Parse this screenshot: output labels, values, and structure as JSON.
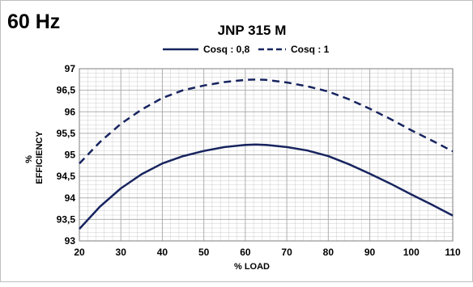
{
  "chart_data": {
    "type": "line",
    "frequency_label": "60 Hz",
    "title": "JNP 315 M",
    "xlabel": "% LOAD",
    "ylabel_top": "%",
    "ylabel": "EFFICIENCY",
    "xlim": [
      20,
      110
    ],
    "ylim": [
      93,
      97
    ],
    "x_ticks": [
      "20",
      "30",
      "40",
      "50",
      "60",
      "70",
      "80",
      "90",
      "100",
      "110"
    ],
    "y_ticks": [
      "93",
      "93,5",
      "94",
      "94,5",
      "95",
      "95,5",
      "96",
      "96,5",
      "97"
    ],
    "grid": true,
    "legend_position": "top",
    "colors": {
      "series": "#17245f",
      "grid": "#a6a6a6",
      "frame": "#7f7f7f"
    },
    "series": [
      {
        "name": "Cosq : 0,8",
        "style": "solid",
        "x": [
          20,
          25,
          30,
          35,
          40,
          45,
          50,
          55,
          60,
          62.5,
          65,
          70,
          75,
          80,
          85,
          90,
          95,
          100,
          105,
          110
        ],
        "y": [
          93.28,
          93.8,
          94.22,
          94.55,
          94.8,
          94.97,
          95.09,
          95.18,
          95.23,
          95.24,
          95.23,
          95.18,
          95.1,
          94.97,
          94.78,
          94.56,
          94.33,
          94.08,
          93.84,
          93.59
        ]
      },
      {
        "name": "Cosq : 1",
        "style": "dashed",
        "x": [
          20,
          25,
          30,
          35,
          40,
          45,
          50,
          55,
          60,
          62.5,
          65,
          70,
          75,
          80,
          85,
          90,
          95,
          100,
          105,
          110
        ],
        "y": [
          94.8,
          95.3,
          95.72,
          96.05,
          96.32,
          96.5,
          96.61,
          96.69,
          96.74,
          96.75,
          96.74,
          96.68,
          96.59,
          96.47,
          96.29,
          96.07,
          95.83,
          95.57,
          95.33,
          95.08
        ]
      }
    ]
  }
}
